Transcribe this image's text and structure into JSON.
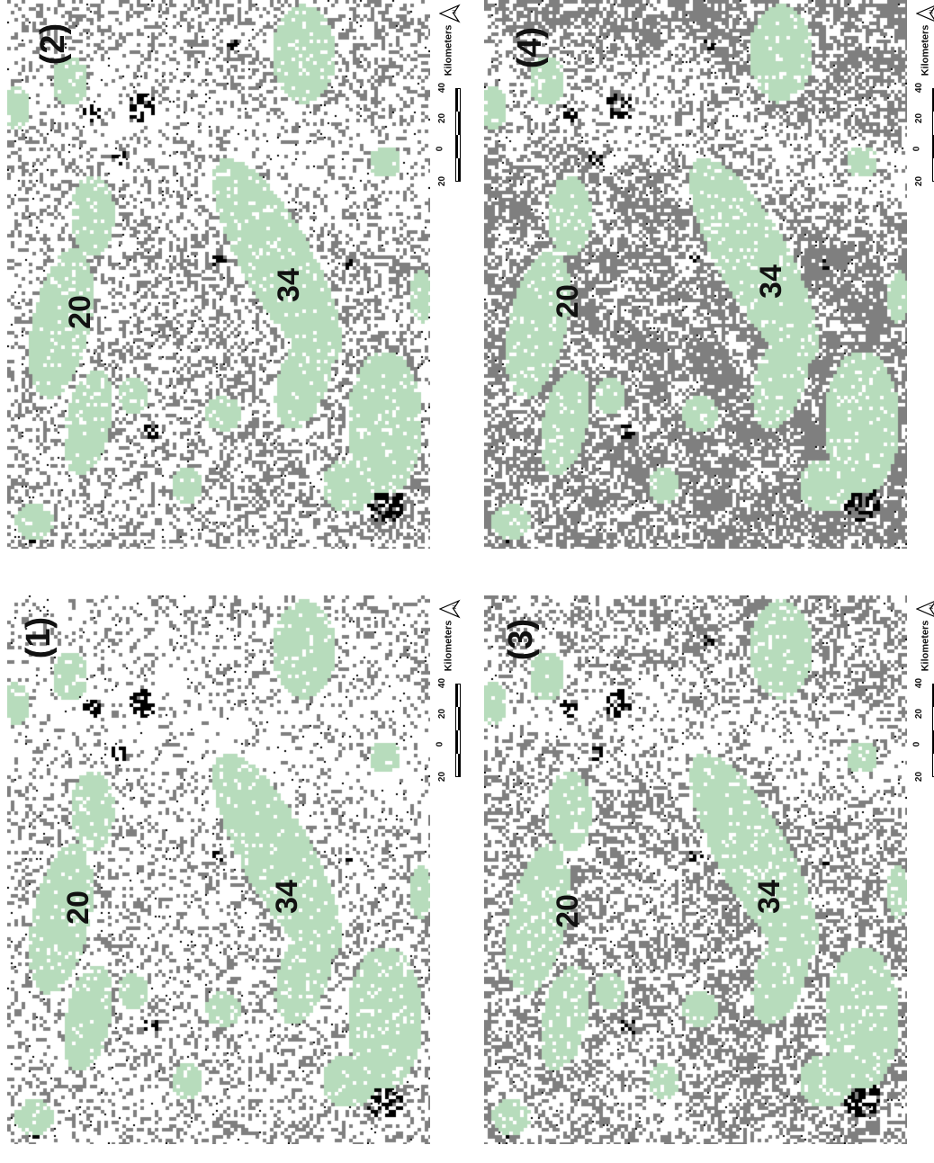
{
  "colors": {
    "background": "#ffffff",
    "gray_class": "#7f7f7f",
    "green_class": "#b7dcbc",
    "black_class": "#000000"
  },
  "panels": [
    {
      "label": "(1)",
      "gray_density": 0.22,
      "seed": 11
    },
    {
      "label": "(2)",
      "gray_density": 0.3,
      "seed": 23
    },
    {
      "label": "(3)",
      "gray_density": 0.38,
      "seed": 37
    },
    {
      "label": "(4)",
      "gray_density": 0.55,
      "seed": 51
    }
  ],
  "region_labels": [
    "20",
    "34"
  ],
  "scale": {
    "ticks": [
      "20",
      "0",
      "20",
      "40"
    ],
    "unit": "Kilometers",
    "north_label": "N",
    "north_icon": "north-arrow-icon"
  }
}
